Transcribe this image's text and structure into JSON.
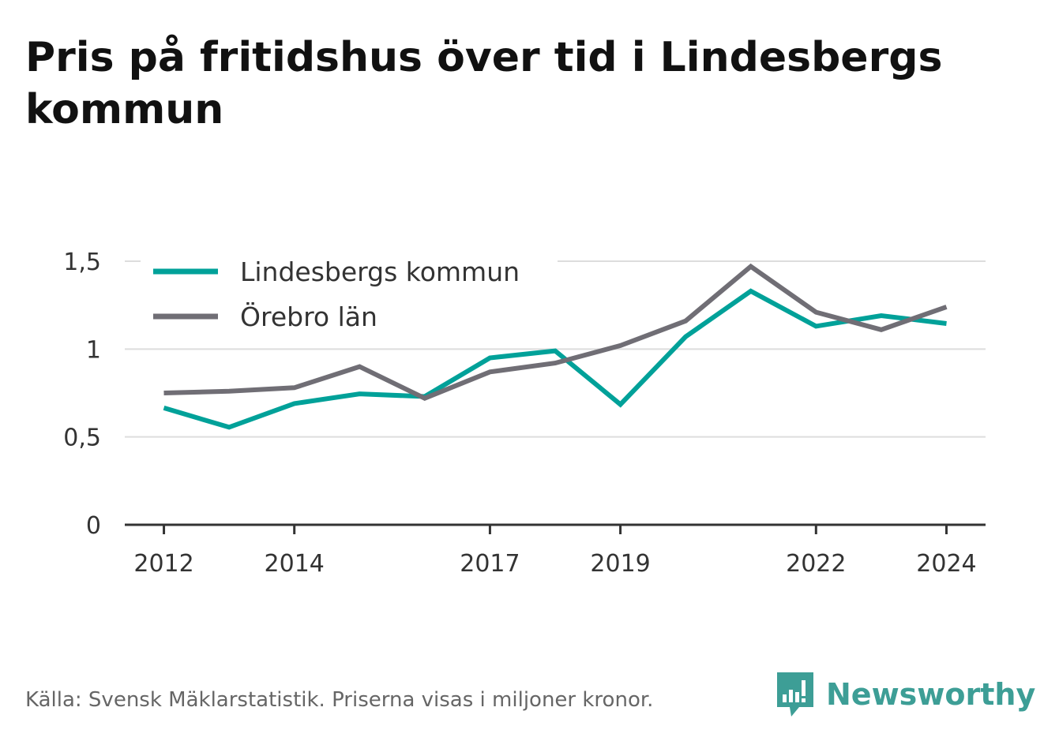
{
  "title": "Pris på fritidshus över tid i Lindesbergs kommun",
  "source": "Källa: Svensk Mäklarstatistik. Priserna visas i miljoner kronor.",
  "brand": {
    "name": "Newsworthy",
    "icon": "newsworthy-logo-icon",
    "color": "#3d9e96"
  },
  "chart_data": {
    "type": "line",
    "x": [
      2012,
      2013,
      2014,
      2015,
      2016,
      2017,
      2018,
      2019,
      2020,
      2021,
      2022,
      2023,
      2024
    ],
    "xticks": [
      2012,
      2014,
      2017,
      2019,
      2022,
      2024
    ],
    "yticks": [
      0,
      0.5,
      1,
      1.5
    ],
    "ytick_labels": [
      "0",
      "0,5",
      "1",
      "1,5"
    ],
    "ylim": [
      0,
      1.5
    ],
    "xlim": [
      2011.4,
      2024.6
    ],
    "grid": true,
    "legend_position": "top-left",
    "series": [
      {
        "name": "Lindesbergs kommun",
        "color": "#00a199",
        "values": [
          0.665,
          0.555,
          0.69,
          0.745,
          0.73,
          0.95,
          0.99,
          0.685,
          1.07,
          1.33,
          1.13,
          1.19,
          1.145
        ]
      },
      {
        "name": "Örebro län",
        "color": "#706e75",
        "values": [
          0.75,
          0.76,
          0.78,
          0.9,
          0.72,
          0.87,
          0.92,
          1.02,
          1.16,
          1.47,
          1.21,
          1.11,
          1.24
        ]
      }
    ]
  }
}
